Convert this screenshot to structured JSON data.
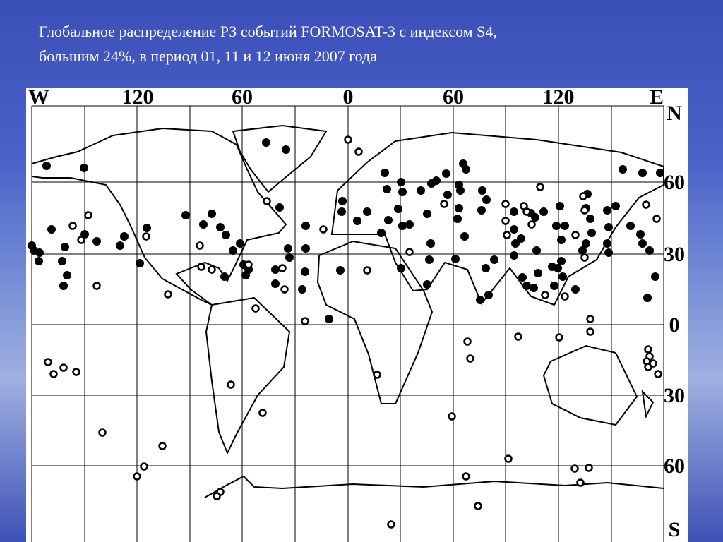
{
  "title_lines": [
    "Глобальное распределение РЗ событий FORMOSAT-3 с индексом S4,",
    "большим 24%, в период 01, 11 и 12 июня 2007 года"
  ],
  "map": {
    "top_labels": [
      "W",
      "120",
      "60",
      "0",
      "60",
      "120",
      "E"
    ],
    "right_labels": [
      "N",
      "60",
      "30",
      "0",
      "30",
      "60",
      "S"
    ]
  }
}
